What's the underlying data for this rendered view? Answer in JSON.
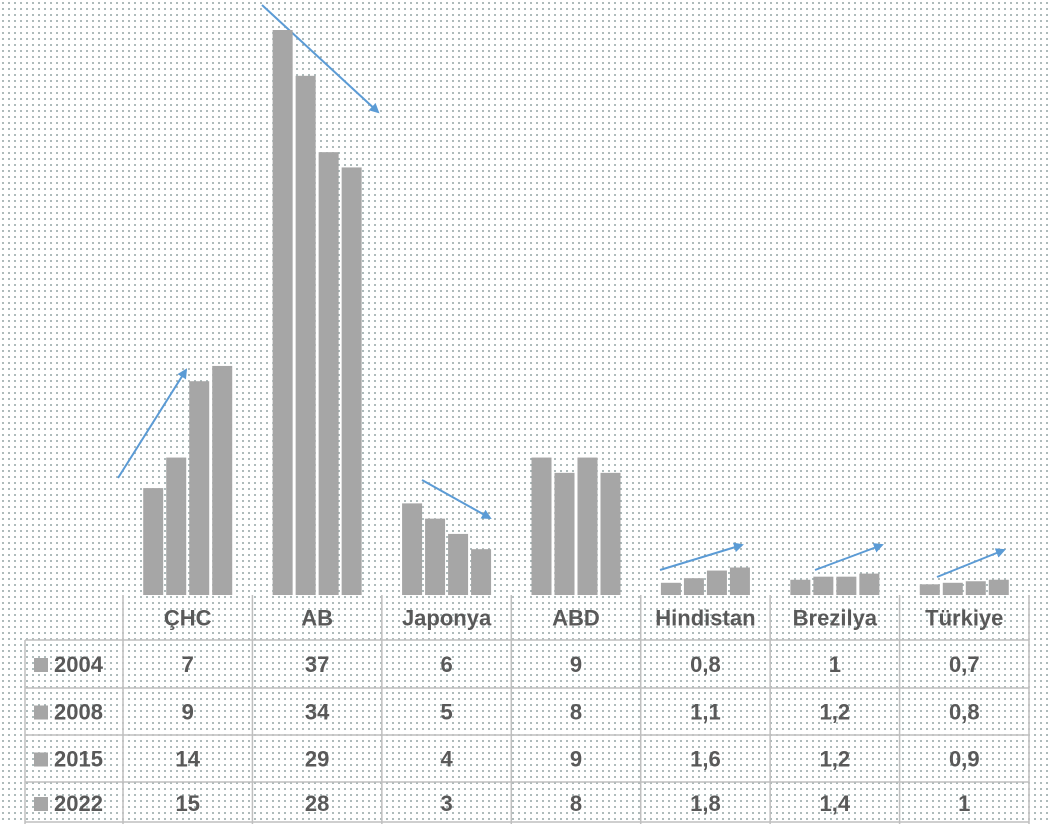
{
  "chart_data": {
    "type": "bar",
    "categories": [
      "ÇHC",
      "AB",
      "Japonya",
      "ABD",
      "Hindistan",
      "Brezilya",
      "Türkiye"
    ],
    "series": [
      {
        "name": "2004",
        "color": "#a6a6a6",
        "values": [
          7,
          37,
          6,
          9,
          0.8,
          1,
          0.7
        ],
        "value_labels": [
          "7",
          "37",
          "6",
          "9",
          "0,8",
          "1",
          "0,7"
        ]
      },
      {
        "name": "2008",
        "color": "#a6a6a6",
        "values": [
          9,
          34,
          5,
          8,
          1.1,
          1.2,
          0.8
        ],
        "value_labels": [
          "9",
          "34",
          "5",
          "8",
          "1,1",
          "1,2",
          "0,8"
        ]
      },
      {
        "name": "2015",
        "color": "#a6a6a6",
        "values": [
          14,
          29,
          4,
          9,
          1.6,
          1.2,
          0.9
        ],
        "value_labels": [
          "14",
          "29",
          "4",
          "9",
          "1,6",
          "1,2",
          "0,9"
        ]
      },
      {
        "name": "2022",
        "color": "#a6a6a6",
        "values": [
          15,
          28,
          3,
          8,
          1.8,
          1.4,
          1
        ],
        "value_labels": [
          "15",
          "28",
          "3",
          "8",
          "1,8",
          "1,4",
          "1"
        ]
      }
    ],
    "ylim": [
      0,
      37
    ]
  }
}
